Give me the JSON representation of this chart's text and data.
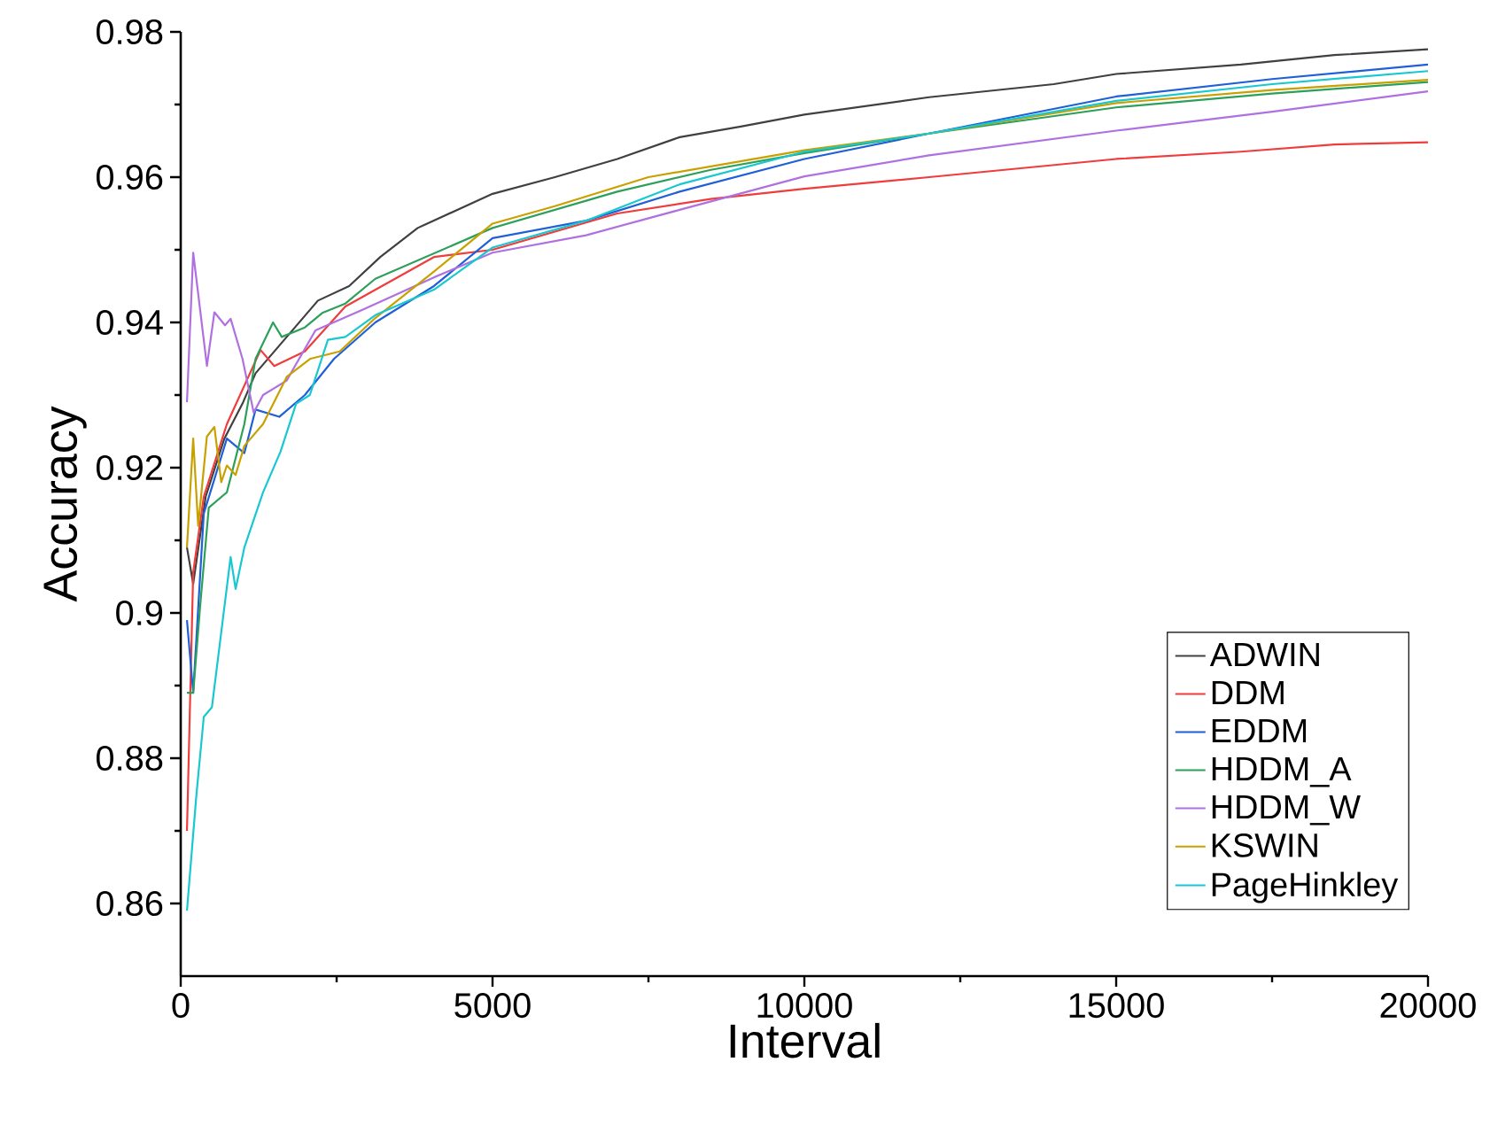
{
  "chart_data": {
    "type": "line",
    "xlabel": "Interval",
    "ylabel": "Accuracy",
    "xlim": [
      0,
      20000
    ],
    "ylim": [
      0.85,
      0.98
    ],
    "xticks": [
      0,
      5000,
      10000,
      15000,
      20000
    ],
    "yticks": [
      0.86,
      0.88,
      0.9,
      0.92,
      0.94,
      0.96,
      0.98
    ],
    "legend": "bottom right",
    "grid": false,
    "marker": "none",
    "line_style": "solid",
    "series": [
      {
        "name": "ADWIN",
        "color": "#404040",
        "x": [
          100,
          200,
          400,
          700,
          1000,
          1200,
          1700,
          2200,
          2700,
          3200,
          3800,
          5000,
          6000,
          7000,
          8000,
          9000,
          10000,
          12000,
          14000,
          15000,
          17000,
          18500,
          20000
        ],
        "values": [
          0.909,
          0.904,
          0.916,
          0.924,
          0.929,
          0.933,
          0.938,
          0.943,
          0.945,
          0.949,
          0.953,
          0.9577,
          0.96,
          0.9625,
          0.9655,
          0.967,
          0.9686,
          0.971,
          0.9728,
          0.9742,
          0.9755,
          0.9768,
          0.9776
        ]
      },
      {
        "name": "DDM",
        "color": "#f03c3c",
        "x": [
          100,
          200,
          370,
          740,
          1280,
          1500,
          1990,
          2640,
          4060,
          5000,
          7000,
          8500,
          10000,
          12000,
          15000,
          17000,
          18500,
          20000
        ],
        "values": [
          0.87,
          0.9056,
          0.916,
          0.926,
          0.9362,
          0.934,
          0.936,
          0.9422,
          0.949,
          0.95,
          0.955,
          0.957,
          0.9584,
          0.96,
          0.9625,
          0.9635,
          0.9645,
          0.9648
        ]
      },
      {
        "name": "EDDM",
        "color": "#1f5fd8",
        "x": [
          100,
          200,
          370,
          740,
          1020,
          1200,
          1580,
          1990,
          2460,
          3120,
          4060,
          5000,
          6500,
          8000,
          10000,
          12000,
          15000,
          17500,
          20000
        ],
        "values": [
          0.899,
          0.889,
          0.9137,
          0.924,
          0.922,
          0.928,
          0.927,
          0.93,
          0.935,
          0.94,
          0.945,
          0.9516,
          0.954,
          0.958,
          0.9625,
          0.966,
          0.9711,
          0.9735,
          0.9755
        ]
      },
      {
        "name": "HDDM_A",
        "color": "#2ca05a",
        "x": [
          100,
          200,
          310,
          450,
          740,
          1020,
          1200,
          1480,
          1620,
          1990,
          2270,
          2640,
          3120,
          5000,
          6000,
          7000,
          8500,
          10000,
          12000,
          15000,
          17500,
          20000
        ],
        "values": [
          0.889,
          0.889,
          0.9008,
          0.9145,
          0.9166,
          0.926,
          0.935,
          0.94,
          0.938,
          0.9393,
          0.9413,
          0.9426,
          0.946,
          0.953,
          0.9555,
          0.958,
          0.961,
          0.9633,
          0.966,
          0.9696,
          0.9715,
          0.9731
        ]
      },
      {
        "name": "HDDM_W",
        "color": "#b070e0",
        "x": [
          100,
          200,
          420,
          540,
          710,
          800,
          990,
          1170,
          1320,
          1700,
          2160,
          2930,
          4060,
          5000,
          6500,
          8000,
          10000,
          12000,
          15000,
          17500,
          20000
        ],
        "values": [
          0.929,
          0.9496,
          0.934,
          0.9414,
          0.9396,
          0.9405,
          0.935,
          0.9276,
          0.93,
          0.932,
          0.9389,
          0.9418,
          0.9462,
          0.9496,
          0.952,
          0.9555,
          0.9601,
          0.963,
          0.9664,
          0.969,
          0.9718
        ]
      },
      {
        "name": "KSWIN",
        "color": "#c8a000",
        "x": [
          100,
          200,
          280,
          420,
          540,
          650,
          740,
          880,
          1020,
          1320,
          1700,
          2080,
          2550,
          3120,
          4060,
          5000,
          6000,
          7500,
          10000,
          12000,
          15000,
          17500,
          20000
        ],
        "values": [
          0.909,
          0.924,
          0.912,
          0.9243,
          0.9256,
          0.918,
          0.9203,
          0.919,
          0.923,
          0.926,
          0.9325,
          0.935,
          0.936,
          0.9406,
          0.947,
          0.9536,
          0.956,
          0.96,
          0.9637,
          0.966,
          0.9702,
          0.972,
          0.9734
        ]
      },
      {
        "name": "PageHinkley",
        "color": "#18c8d0",
        "x": [
          100,
          250,
          370,
          500,
          800,
          880,
          1020,
          1320,
          1600,
          1850,
          2070,
          2360,
          2640,
          3120,
          4060,
          5000,
          6500,
          8000,
          10000,
          12000,
          15000,
          17500,
          20000
        ],
        "values": [
          0.859,
          0.8748,
          0.8857,
          0.887,
          0.9077,
          0.9033,
          0.909,
          0.9166,
          0.9222,
          0.9288,
          0.93,
          0.9376,
          0.938,
          0.941,
          0.9445,
          0.9503,
          0.954,
          0.959,
          0.9635,
          0.966,
          0.9705,
          0.9728,
          0.9746
        ]
      }
    ]
  }
}
